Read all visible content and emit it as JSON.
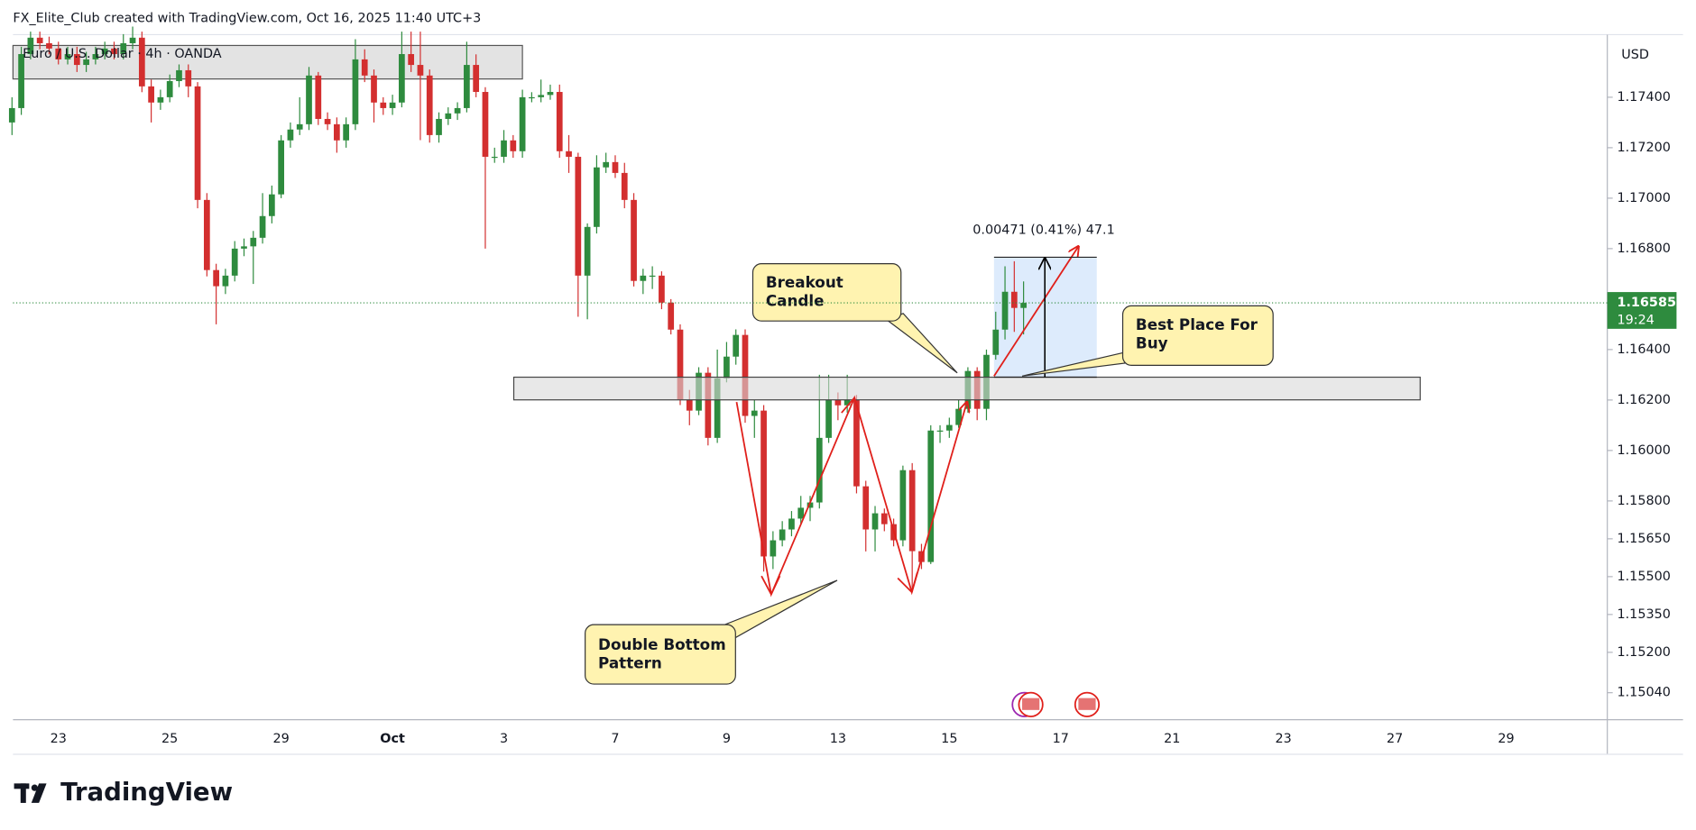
{
  "chart_data": {
    "type": "candlestick",
    "header": "FX_Elite_Club created with TradingView.com, Oct 16, 2025 11:40 UTC+3",
    "title": "Euro / U.S. Dollar · 4h · OANDA",
    "currency": "USD",
    "brand": "TradingView",
    "up_color": "#2e8b3e",
    "down_color": "#d32f2f",
    "ylim": [
      1.14933,
      1.17648
    ],
    "yticks": [
      {
        "value": 1.174,
        "label": "1.17400"
      },
      {
        "value": 1.172,
        "label": "1.17200"
      },
      {
        "value": 1.17,
        "label": "1.17000"
      },
      {
        "value": 1.168,
        "label": "1.16800"
      },
      {
        "value": 1.164,
        "label": "1.16400"
      },
      {
        "value": 1.162,
        "label": "1.16200"
      },
      {
        "value": 1.16,
        "label": "1.16000"
      },
      {
        "value": 1.158,
        "label": "1.15800"
      },
      {
        "value": 1.1565,
        "label": "1.15650"
      },
      {
        "value": 1.155,
        "label": "1.15500"
      },
      {
        "value": 1.1535,
        "label": "1.15350"
      },
      {
        "value": 1.152,
        "label": "1.15200"
      },
      {
        "value": 1.1504,
        "label": "1.15040"
      }
    ],
    "current_price_label": "1.16585",
    "countdown": "19:24",
    "measure_label": "0.00471 (0.41%) 47.1",
    "annotations": {
      "breakout": [
        "Breakout",
        "Candle"
      ],
      "best_buy": [
        "Best Place For",
        "Buy"
      ],
      "double_bottom": [
        "Double Bottom",
        "Pattern"
      ]
    },
    "categories": [
      null,
      null,
      null,
      null,
      null,
      "23",
      null,
      null,
      null,
      null,
      null,
      null,
      null,
      null,
      null,
      null,
      null,
      "25",
      null,
      null,
      null,
      null,
      null,
      null,
      null,
      null,
      null,
      null,
      null,
      "29",
      null,
      null,
      null,
      null,
      null,
      null,
      null,
      null,
      null,
      null,
      null,
      "Oct",
      null,
      null,
      null,
      null,
      null,
      null,
      null,
      null,
      null,
      null,
      null,
      "3",
      null,
      null,
      null,
      null,
      null,
      null,
      null,
      null,
      null,
      null,
      null,
      "7",
      null,
      null,
      null,
      null,
      null,
      null,
      null,
      null,
      null,
      null,
      null,
      "9",
      null,
      null,
      null,
      null,
      null,
      null,
      null,
      null,
      null,
      null,
      null,
      "13",
      null,
      null,
      null,
      null,
      null,
      null,
      null,
      null,
      null,
      null,
      null,
      "15",
      null,
      null,
      null,
      null,
      null,
      null,
      null,
      null,
      null,
      null,
      null,
      "17",
      null,
      null,
      null,
      null,
      null,
      null,
      null,
      null,
      null,
      null,
      null,
      "21",
      null,
      null,
      null,
      null,
      null,
      null,
      null,
      null,
      null,
      null,
      null,
      "23",
      null,
      null,
      null,
      null,
      null,
      null,
      null,
      null,
      null,
      null,
      null,
      "27",
      null,
      null,
      null,
      null,
      null,
      null,
      null,
      null,
      null,
      null,
      null,
      "29"
    ],
    "open": [
      1.173,
      1.17357,
      1.17571,
      1.17636,
      1.17614,
      1.17593,
      1.1755,
      1.17571,
      1.17528,
      1.1755,
      1.17571,
      1.17593,
      1.17571,
      1.17614,
      1.17636,
      1.17443,
      1.17379,
      1.174,
      1.17464,
      1.17507,
      1.17443,
      1.16993,
      1.16715,
      1.16651,
      1.16693,
      1.168,
      1.16809,
      1.16843,
      1.16929,
      1.17015,
      1.17229,
      1.17272,
      1.17293,
      1.17486,
      1.17314,
      1.17293,
      1.17229,
      1.17293,
      1.1755,
      1.17486,
      1.17379,
      1.17357,
      1.17379,
      1.17571,
      1.17528,
      1.17486,
      1.1725,
      1.17314,
      1.17336,
      1.17357,
      1.17528,
      1.17421,
      1.17164,
      1.17164,
      1.17229,
      1.17186,
      1.174,
      1.174,
      1.17409,
      1.17421,
      1.17186,
      1.17164,
      1.16693,
      1.16886,
      1.17122,
      1.17143,
      1.171,
      1.16993,
      1.16672,
      1.16693,
      1.16693,
      1.16586,
      1.16479,
      1.16201,
      1.16158,
      1.16308,
      1.1605,
      1.16286,
      1.16372,
      1.16458,
      1.16137,
      1.16158,
      1.1558,
      1.15644,
      1.15687,
      1.1573,
      1.15773,
      1.15794,
      1.1605,
      1.16201,
      1.16179,
      1.16201,
      1.15858,
      1.15687,
      1.15751,
      1.15708,
      1.15644,
      1.15922,
      1.15601,
      1.15558,
      1.16079,
      1.16079,
      1.16101,
      1.16165,
      1.16315,
      1.16165,
      1.16379,
      1.16479,
      1.16629,
      1.16565,
      null,
      null,
      null,
      null,
      null,
      null,
      null,
      null,
      null,
      null,
      null,
      null,
      null,
      null,
      null,
      null,
      null,
      null,
      null,
      null,
      null,
      null,
      null,
      null,
      null,
      null,
      null,
      null,
      null,
      null,
      null,
      null,
      null,
      null,
      null,
      null,
      null,
      null,
      null,
      null,
      null,
      null,
      null,
      null,
      null,
      null,
      null,
      null,
      null,
      null,
      null,
      null
    ],
    "high": [
      1.174,
      1.176,
      1.1766,
      1.1766,
      1.1764,
      1.1762,
      1.176,
      1.176,
      1.1758,
      1.176,
      1.1762,
      1.1762,
      1.1765,
      1.1768,
      1.1766,
      1.1747,
      1.1743,
      1.1749,
      1.1753,
      1.1753,
      1.1746,
      1.1702,
      1.1674,
      1.1672,
      1.1683,
      1.1684,
      1.1687,
      1.1702,
      1.1705,
      1.1725,
      1.173,
      1.174,
      1.1752,
      1.175,
      1.1734,
      1.1732,
      1.1732,
      1.1763,
      1.1759,
      1.1751,
      1.174,
      1.1741,
      1.1766,
      1.1766,
      1.1766,
      1.1751,
      1.1734,
      1.1736,
      1.1738,
      1.1762,
      1.1757,
      1.1744,
      1.172,
      1.1727,
      1.1725,
      1.1743,
      1.1742,
      1.1747,
      1.1745,
      1.1745,
      1.1725,
      1.1718,
      1.169,
      1.1717,
      1.1718,
      1.1717,
      1.1714,
      1.1702,
      1.1672,
      1.1673,
      1.1671,
      1.166,
      1.165,
      1.1624,
      1.1633,
      1.1633,
      1.164,
      1.1643,
      1.1648,
      1.1648,
      1.162,
      1.1618,
      1.1568,
      1.1572,
      1.1576,
      1.1582,
      1.1582,
      1.163,
      1.163,
      1.1623,
      1.163,
      1.1622,
      1.1588,
      1.1578,
      1.1577,
      1.1573,
      1.1594,
      1.1595,
      1.1563,
      1.161,
      1.161,
      1.1613,
      1.162,
      1.1633,
      1.1633,
      1.164,
      1.1655,
      1.1673,
      1.1675,
      1.1667,
      null,
      null,
      null,
      null,
      null,
      null,
      null,
      null,
      null,
      null,
      null,
      null,
      null,
      null,
      null,
      null,
      null,
      null,
      null,
      null,
      null,
      null,
      null,
      null,
      null,
      null,
      null,
      null,
      null,
      null,
      null,
      null,
      null,
      null,
      null,
      null,
      null,
      null,
      null,
      null,
      null,
      null,
      null,
      null,
      null,
      null,
      null,
      null,
      null,
      null,
      null,
      null
    ],
    "low": [
      1.1725,
      1.1733,
      1.1755,
      1.1759,
      1.1757,
      1.1753,
      1.1753,
      1.175,
      1.175,
      1.1753,
      1.1755,
      1.1755,
      1.1755,
      1.1759,
      1.1742,
      1.173,
      1.1735,
      1.1738,
      1.1744,
      1.174,
      1.1696,
      1.1669,
      1.165,
      1.1662,
      1.1667,
      1.1677,
      1.1666,
      1.1682,
      1.169,
      1.17,
      1.172,
      1.1725,
      1.1727,
      1.1729,
      1.1727,
      1.1718,
      1.172,
      1.1727,
      1.1746,
      1.173,
      1.1733,
      1.1733,
      1.1736,
      1.175,
      1.1723,
      1.1722,
      1.1722,
      1.1729,
      1.1731,
      1.1734,
      1.174,
      1.168,
      1.1714,
      1.1714,
      1.1716,
      1.1716,
      1.1738,
      1.1738,
      1.1739,
      1.1716,
      1.171,
      1.1653,
      1.1652,
      1.1686,
      1.171,
      1.1708,
      1.1696,
      1.1665,
      1.1662,
      1.1664,
      1.1656,
      1.1646,
      1.1618,
      1.161,
      1.1614,
      1.1602,
      1.1603,
      1.1627,
      1.1634,
      1.1611,
      1.1605,
      1.1552,
      1.1553,
      1.1562,
      1.1566,
      1.1571,
      1.1572,
      1.1577,
      1.1603,
      1.1612,
      1.1615,
      1.1583,
      1.156,
      1.156,
      1.1568,
      1.1562,
      1.1562,
      1.1544,
      1.1553,
      1.1555,
      1.1603,
      1.1605,
      1.1609,
      1.1615,
      1.1612,
      1.1612,
      1.1636,
      1.1644,
      1.1647,
      1.1646,
      null,
      null,
      null,
      null,
      null,
      null,
      null,
      null,
      null,
      null,
      null,
      null,
      null,
      null,
      null,
      null,
      null,
      null,
      null,
      null,
      null,
      null,
      null,
      null,
      null,
      null,
      null,
      null,
      null,
      null,
      null,
      null,
      null,
      null,
      null,
      null,
      null,
      null,
      null,
      null,
      null,
      null,
      null,
      null,
      null,
      null,
      null,
      null,
      null,
      null,
      null,
      null
    ],
    "close": [
      1.17357,
      1.17571,
      1.17636,
      1.17614,
      1.17593,
      1.1755,
      1.17571,
      1.17528,
      1.1755,
      1.17571,
      1.17593,
      1.17571,
      1.17614,
      1.17636,
      1.17443,
      1.17379,
      1.174,
      1.17464,
      1.17507,
      1.17443,
      1.16993,
      1.16715,
      1.16651,
      1.16693,
      1.168,
      1.16809,
      1.16843,
      1.16929,
      1.17015,
      1.17229,
      1.17272,
      1.17293,
      1.17486,
      1.17314,
      1.17293,
      1.17229,
      1.17293,
      1.1755,
      1.17486,
      1.17379,
      1.17357,
      1.17379,
      1.17571,
      1.17528,
      1.17486,
      1.1725,
      1.17314,
      1.17336,
      1.17357,
      1.17528,
      1.17421,
      1.17164,
      1.17164,
      1.17229,
      1.17186,
      1.174,
      1.174,
      1.17409,
      1.17421,
      1.17186,
      1.17164,
      1.16693,
      1.16886,
      1.17122,
      1.17143,
      1.171,
      1.16993,
      1.16672,
      1.16693,
      1.16693,
      1.16586,
      1.16479,
      1.16201,
      1.16158,
      1.16308,
      1.1605,
      1.16286,
      1.16372,
      1.16458,
      1.16137,
      1.16158,
      1.1558,
      1.15644,
      1.15687,
      1.1573,
      1.15773,
      1.15794,
      1.1605,
      1.16201,
      1.16179,
      1.16201,
      1.15858,
      1.15687,
      1.15751,
      1.15708,
      1.15644,
      1.15922,
      1.15601,
      1.15558,
      1.16079,
      1.16079,
      1.16101,
      1.16165,
      1.16315,
      1.16165,
      1.16379,
      1.16479,
      1.16629,
      1.16565,
      1.16585,
      null,
      null,
      null,
      null,
      null,
      null,
      null,
      null,
      null,
      null,
      null,
      null,
      null,
      null,
      null,
      null,
      null,
      null,
      null,
      null,
      null,
      null,
      null,
      null,
      null,
      null,
      null,
      null,
      null,
      null,
      null,
      null,
      null,
      null,
      null,
      null,
      null,
      null,
      null,
      null,
      null,
      null,
      null,
      null,
      null,
      null,
      null,
      null,
      null,
      null,
      null,
      null
    ]
  }
}
